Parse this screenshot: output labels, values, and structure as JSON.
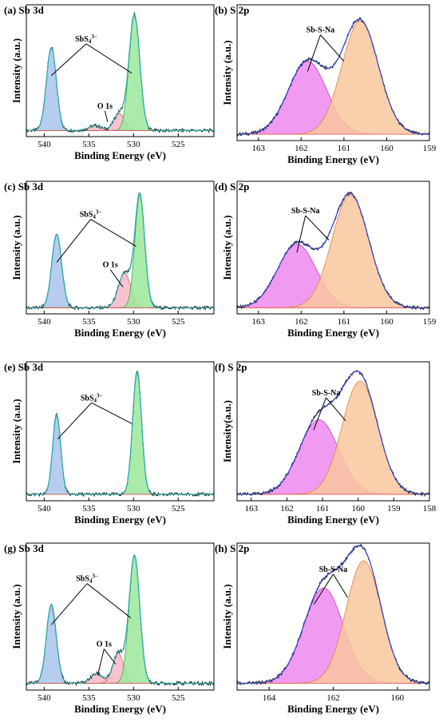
{
  "chart_data": [
    {
      "id": "a",
      "type": "area",
      "tag": "(a)",
      "title": "Sb 3d",
      "xlabel": "Binding Energy (eV)",
      "ylabel": "Intensity (a.u.)",
      "xlim": [
        542,
        521
      ],
      "ylim": [
        0,
        1.08
      ],
      "xticks": [
        540,
        535,
        530,
        525
      ],
      "baseline": 0.05,
      "peaks": [
        {
          "name": "SbS4 3- (3d3/2)",
          "center": 539.2,
          "height": 0.68,
          "width": 0.55,
          "color": "#a9c4ec",
          "edge": "#5f86c8"
        },
        {
          "name": "O 1s",
          "center": 534.3,
          "height": 0.04,
          "width": 0.7,
          "color": "#f7b8c6",
          "edge": "#d7607a"
        },
        {
          "name": "O 1s",
          "center": 531.6,
          "height": 0.14,
          "width": 0.6,
          "color": "#f7b8c6",
          "edge": "#d7607a"
        },
        {
          "name": "SbS4 3- (3d5/2)",
          "center": 529.9,
          "height": 0.95,
          "width": 0.6,
          "color": "#9be89b",
          "edge": "#3fa83f"
        }
      ],
      "annotations": [
        {
          "text": "SbS",
          "sub": "4",
          "sup": "3−",
          "x": 535.3,
          "y": 0.78,
          "arrows": [
            [
              539.2,
              0.5
            ],
            [
              530.2,
              0.52
            ]
          ]
        },
        {
          "text": "O 1s",
          "x": 533.2,
          "y": 0.23,
          "arrows": [
            [
              532.9,
              0.12
            ]
          ]
        }
      ]
    },
    {
      "id": "b",
      "type": "area",
      "tag": "(b)",
      "title": "S 2p",
      "xlabel": "Binding Energy (eV)",
      "ylabel": "Intensity (a.u.)",
      "xlim": [
        163.5,
        159
      ],
      "ylim": [
        0,
        1.08
      ],
      "xticks": [
        163,
        162,
        161,
        160,
        159
      ],
      "baseline": 0.05,
      "peaks": [
        {
          "name": "Sb-S-Na (2p1/2)",
          "center": 161.85,
          "height": 0.58,
          "width": 0.45,
          "color": "#ee88ee",
          "edge": "#c040c0"
        },
        {
          "name": "Sb-S-Na (2p3/2)",
          "center": 160.62,
          "height": 0.9,
          "width": 0.43,
          "color": "#f9c79d",
          "edge": "#e08040"
        }
      ],
      "annotations": [
        {
          "text": "Sb-S-Na",
          "x": 161.55,
          "y": 0.86,
          "arrows": [
            [
              161.85,
              0.55
            ],
            [
              161.0,
              0.63
            ]
          ]
        }
      ]
    },
    {
      "id": "c",
      "type": "area",
      "tag": "(c)",
      "title": "Sb 3d",
      "xlabel": "Binding Energy (eV)",
      "ylabel": "Intensity (a.u.)",
      "xlim": [
        542,
        521
      ],
      "ylim": [
        0,
        1.08
      ],
      "xticks": [
        540,
        535,
        530,
        525
      ],
      "baseline": 0.05,
      "peaks": [
        {
          "name": "SbS4 3- (3d3/2)",
          "center": 538.6,
          "height": 0.6,
          "width": 0.55,
          "color": "#a9c4ec",
          "edge": "#5f86c8"
        },
        {
          "name": "O 1s",
          "center": 531.0,
          "height": 0.28,
          "width": 0.7,
          "color": "#f7b8c6",
          "edge": "#d7607a"
        },
        {
          "name": "SbS4 3- (3d5/2)",
          "center": 529.3,
          "height": 0.92,
          "width": 0.55,
          "color": "#9be89b",
          "edge": "#3fa83f"
        }
      ],
      "annotations": [
        {
          "text": "SbS",
          "sub": "4",
          "sup": "3−",
          "x": 534.8,
          "y": 0.79,
          "arrows": [
            [
              538.6,
              0.42
            ],
            [
              529.7,
              0.55
            ]
          ]
        },
        {
          "text": "O 1s",
          "x": 532.6,
          "y": 0.38,
          "arrows": [
            [
              531.2,
              0.22
            ]
          ]
        }
      ]
    },
    {
      "id": "d",
      "type": "area",
      "tag": "(d)",
      "title": "S 2p",
      "xlabel": "Binding Energy (eV)",
      "ylabel": "Intensity (a.u.)",
      "xlim": [
        163.5,
        159
      ],
      "ylim": [
        0,
        1.08
      ],
      "xticks": [
        163,
        162,
        161,
        160,
        159
      ],
      "baseline": 0.05,
      "peaks": [
        {
          "name": "Sb-S-Na (2p1/2)",
          "center": 162.1,
          "height": 0.52,
          "width": 0.45,
          "color": "#ee88ee",
          "edge": "#c040c0"
        },
        {
          "name": "Sb-S-Na (2p3/2)",
          "center": 160.85,
          "height": 0.92,
          "width": 0.43,
          "color": "#f9c79d",
          "edge": "#e08040"
        }
      ],
      "annotations": [
        {
          "text": "Sb-S-Na",
          "x": 161.9,
          "y": 0.82,
          "arrows": [
            [
              162.1,
              0.5
            ],
            [
              161.35,
              0.6
            ]
          ]
        }
      ]
    },
    {
      "id": "e",
      "type": "area",
      "tag": "(e)",
      "title": "Sb 3d",
      "xlabel": "Binding Energy (eV)",
      "ylabel": "Intensity (a.u.)",
      "xlim": [
        542,
        521
      ],
      "ylim": [
        0,
        1.08
      ],
      "xticks": [
        540,
        535,
        530,
        525
      ],
      "baseline": 0.05,
      "peaks": [
        {
          "name": "SbS4 3- (3d3/2)",
          "center": 538.6,
          "height": 0.62,
          "width": 0.45,
          "color": "#a9c4ec",
          "edge": "#5f86c8"
        },
        {
          "name": "SbS4 3- (3d5/2)",
          "center": 529.6,
          "height": 0.96,
          "width": 0.5,
          "color": "#9be89b",
          "edge": "#3fa83f"
        }
      ],
      "annotations": [
        {
          "text": "SbS",
          "sub": "4",
          "sup": "3−",
          "x": 534.7,
          "y": 0.78,
          "arrows": [
            [
              538.5,
              0.48
            ],
            [
              530.2,
              0.6
            ]
          ]
        }
      ]
    },
    {
      "id": "f",
      "type": "area",
      "tag": "(f)",
      "title": "S 2p",
      "xlabel": "Binding Energy (eV)",
      "ylabel": "Intensity(a.u.)",
      "xlim": [
        163.4,
        158
      ],
      "ylim": [
        0,
        1.08
      ],
      "xticks": [
        163,
        162,
        161,
        160,
        159,
        158
      ],
      "baseline": 0.05,
      "peaks": [
        {
          "name": "Sb-S-Na (2p1/2)",
          "center": 161.1,
          "height": 0.58,
          "width": 0.55,
          "color": "#ee88ee",
          "edge": "#c040c0"
        },
        {
          "name": "Sb-S-Na (2p3/2)",
          "center": 159.95,
          "height": 0.88,
          "width": 0.5,
          "color": "#f9c79d",
          "edge": "#e08040"
        }
      ],
      "annotations": [
        {
          "text": "Sb-S-Na",
          "x": 160.9,
          "y": 0.82,
          "arrows": [
            [
              161.25,
              0.55
            ],
            [
              160.35,
              0.62
            ]
          ]
        }
      ]
    },
    {
      "id": "g",
      "type": "area",
      "tag": "(g)",
      "title": "Sb 3d",
      "xlabel": "Binding Energy (eV)",
      "ylabel": "Intensity (a.u.)",
      "xlim": [
        542,
        521
      ],
      "ylim": [
        0,
        1.08
      ],
      "xticks": [
        540,
        535,
        530,
        525
      ],
      "baseline": 0.05,
      "peaks": [
        {
          "name": "SbS4 3- (3d3/2)",
          "center": 539.2,
          "height": 0.58,
          "width": 0.55,
          "color": "#a9c4ec",
          "edge": "#5f86c8"
        },
        {
          "name": "O 1s",
          "center": 534.1,
          "height": 0.07,
          "width": 0.7,
          "color": "#f7b8c6",
          "edge": "#d7607a"
        },
        {
          "name": "O 1s",
          "center": 531.7,
          "height": 0.22,
          "width": 0.6,
          "color": "#f7b8c6",
          "edge": "#d7607a"
        },
        {
          "name": "SbS4 3- (3d5/2)",
          "center": 529.9,
          "height": 0.94,
          "width": 0.6,
          "color": "#9be89b",
          "edge": "#3fa83f"
        }
      ],
      "annotations": [
        {
          "text": "SbS",
          "sub": "4",
          "sup": "3−",
          "x": 535.2,
          "y": 0.8,
          "arrows": [
            [
              539.2,
              0.48
            ],
            [
              530.3,
              0.53
            ]
          ]
        },
        {
          "text": "O 1s",
          "x": 533.3,
          "y": 0.32,
          "arrows": [
            [
              534.0,
              0.11
            ],
            [
              532.0,
              0.19
            ]
          ]
        }
      ]
    },
    {
      "id": "h",
      "type": "area",
      "tag": "(h)",
      "title": "S 2p",
      "xlabel": "Binding Energy (eV)",
      "ylabel": "Intensity (a.u.)",
      "xlim": [
        165,
        159
      ],
      "ylim": [
        0,
        1.08
      ],
      "xticks": [
        164,
        162,
        160
      ],
      "baseline": 0.05,
      "peaks": [
        {
          "name": "Sb-S-Na (2p1/2)",
          "center": 162.3,
          "height": 0.7,
          "width": 0.62,
          "color": "#ee88ee",
          "edge": "#c040c0"
        },
        {
          "name": "Sb-S-Na (2p3/2)",
          "center": 161.05,
          "height": 0.9,
          "width": 0.55,
          "color": "#f9c79d",
          "edge": "#e08040"
        }
      ],
      "annotations": [
        {
          "text": "Sb-S-Na",
          "x": 162.0,
          "y": 0.87,
          "arrows": [
            [
              162.6,
              0.63
            ],
            [
              161.55,
              0.68
            ]
          ]
        }
      ]
    }
  ]
}
